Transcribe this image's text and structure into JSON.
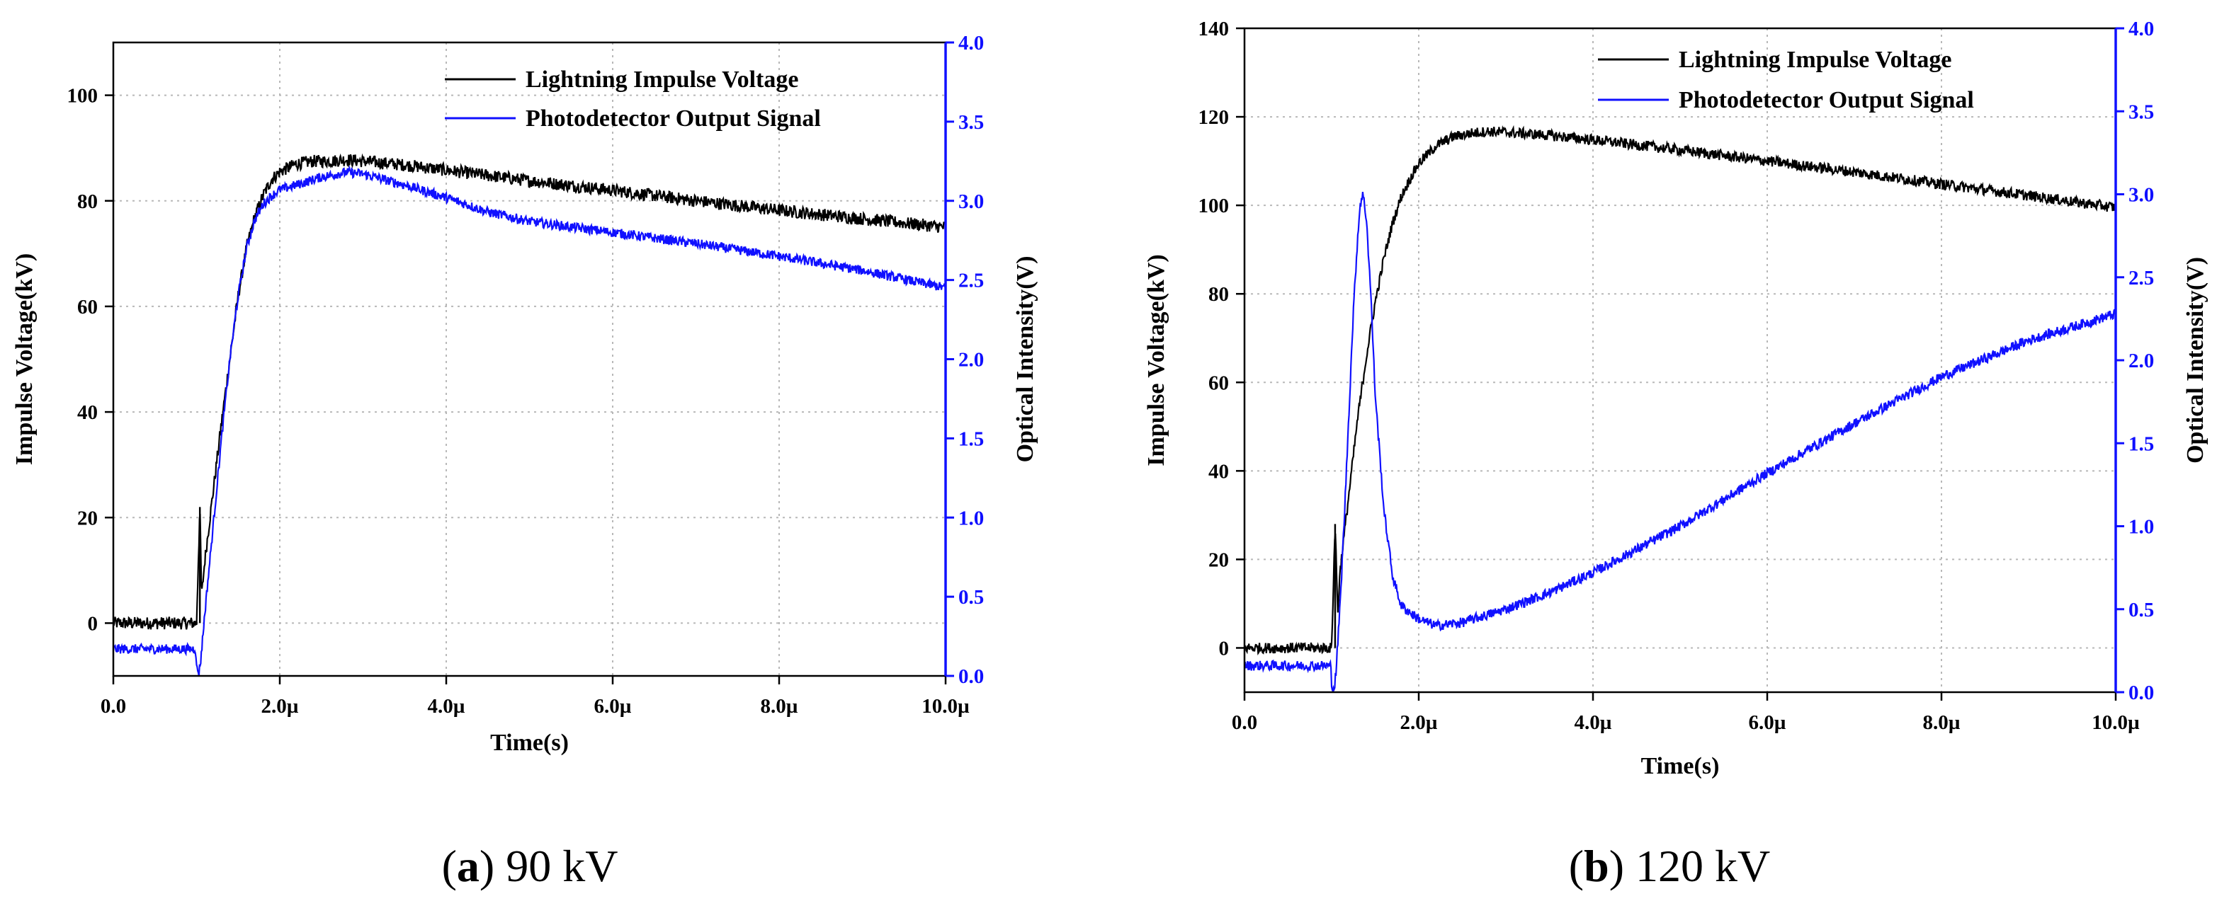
{
  "chart_data": [
    {
      "type": "line",
      "panel_label": "a",
      "caption": "90 kV",
      "xlabel": "Time(s)",
      "ylabel_left": "Impulse Voltage(kV)",
      "ylabel_right": "Optical Intensity(V)",
      "xlim": [
        0,
        10
      ],
      "x_unit_label": "µ",
      "ylim_left": [
        -10,
        110
      ],
      "ylim_right": [
        0,
        4.0
      ],
      "x_ticks": [
        "0.0",
        "2.0µ",
        "4.0µ",
        "6.0µ",
        "8.0µ",
        "10.0µ"
      ],
      "x_tick_values": [
        0,
        2,
        4,
        6,
        8,
        10
      ],
      "y_left_ticks": [
        "0",
        "20",
        "40",
        "60",
        "80",
        "100"
      ],
      "y_left_tick_values": [
        0,
        20,
        40,
        60,
        80,
        100
      ],
      "y_right_ticks": [
        "0.0",
        "0.5",
        "1.0",
        "1.5",
        "2.0",
        "2.5",
        "3.0",
        "3.5",
        "4.0"
      ],
      "y_right_tick_values": [
        0,
        0.5,
        1.0,
        1.5,
        2.0,
        2.5,
        3.0,
        3.5,
        4.0
      ],
      "grid": true,
      "legend_position": "top-right",
      "series": [
        {
          "name": "Lightning Impulse Voltage",
          "color": "#000000",
          "axis": "left",
          "x": [
            0,
            0.5,
            1.0,
            1.04,
            1.06,
            1.1,
            1.2,
            1.3,
            1.4,
            1.5,
            1.6,
            1.7,
            1.8,
            1.9,
            2.0,
            2.2,
            2.4,
            2.6,
            2.8,
            3.0,
            3.5,
            4.0,
            5.0,
            6.0,
            7.0,
            8.0,
            9.0,
            10.0
          ],
          "y": [
            0,
            0,
            0,
            22,
            5,
            12,
            25,
            38,
            50,
            62,
            71,
            77,
            81,
            84,
            85.5,
            87,
            87.5,
            87.5,
            87.8,
            87.5,
            86.8,
            85.8,
            83.8,
            82,
            80,
            78.2,
            76.6,
            75
          ],
          "noise": 1.2,
          "spikes": [
            {
              "x": 1.04,
              "y": 22
            }
          ]
        },
        {
          "name": "Photodetector Output Signal",
          "color": "#1010ff",
          "axis": "right",
          "x": [
            0,
            0.5,
            0.99,
            1.0,
            1.03,
            1.05,
            1.1,
            1.2,
            1.3,
            1.4,
            1.5,
            1.6,
            1.7,
            1.8,
            1.9,
            2.0,
            2.2,
            2.5,
            2.8,
            3.0,
            3.5,
            4.0,
            4.5,
            5.0,
            6.0,
            7.0,
            8.0,
            9.0,
            10.0
          ],
          "y": [
            0.17,
            0.17,
            0.17,
            0.05,
            0.02,
            0.1,
            0.4,
            0.95,
            1.5,
            2.0,
            2.4,
            2.7,
            2.88,
            2.98,
            3.03,
            3.07,
            3.1,
            3.15,
            3.18,
            3.17,
            3.1,
            3.02,
            2.93,
            2.87,
            2.8,
            2.73,
            2.65,
            2.56,
            2.45
          ],
          "noise": 0.03
        }
      ]
    },
    {
      "type": "line",
      "panel_label": "b",
      "caption": "120 kV",
      "xlabel": "Time(s)",
      "ylabel_left": "Impulse Voltage(kV)",
      "ylabel_right": "Optical Intensity(V)",
      "xlim": [
        0,
        10
      ],
      "x_unit_label": "µ",
      "ylim_left": [
        -10,
        140
      ],
      "ylim_right": [
        0,
        4.0
      ],
      "x_ticks": [
        "0.0",
        "2.0µ",
        "4.0µ",
        "6.0µ",
        "8.0µ",
        "10.0µ"
      ],
      "x_tick_values": [
        0,
        2,
        4,
        6,
        8,
        10
      ],
      "y_left_ticks": [
        "0",
        "20",
        "40",
        "60",
        "80",
        "100",
        "120",
        "140"
      ],
      "y_left_tick_values": [
        0,
        20,
        40,
        60,
        80,
        100,
        120,
        140
      ],
      "y_right_ticks": [
        "0.0",
        "0.5",
        "1.0",
        "1.5",
        "2.0",
        "2.5",
        "3.0",
        "3.5",
        "4.0"
      ],
      "y_right_tick_values": [
        0,
        0.5,
        1.0,
        1.5,
        2.0,
        2.5,
        3.0,
        3.5,
        4.0
      ],
      "grid": true,
      "legend_position": "top-right",
      "series": [
        {
          "name": "Lightning Impulse Voltage",
          "color": "#000000",
          "axis": "left",
          "x": [
            0,
            0.5,
            1.0,
            1.04,
            1.07,
            1.1,
            1.2,
            1.3,
            1.4,
            1.5,
            1.6,
            1.7,
            1.8,
            1.9,
            2.0,
            2.2,
            2.4,
            2.6,
            2.8,
            3.0,
            3.5,
            4.0,
            5.0,
            6.0,
            7.0,
            8.0,
            9.0,
            10.0
          ],
          "y": [
            0,
            0,
            0,
            28,
            8,
            18,
            35,
            52,
            66,
            78,
            88,
            96,
            102,
            106,
            109.5,
            113.5,
            115.5,
            116.3,
            116.7,
            116.5,
            115.8,
            114.8,
            112.5,
            110,
            107.5,
            104.8,
            102.2,
            99.5
          ],
          "noise": 1.2,
          "spikes": [
            {
              "x": 1.04,
              "y": 28
            }
          ]
        },
        {
          "name": "Photodetector Output Signal",
          "color": "#1010ff",
          "axis": "right",
          "x": [
            0,
            0.5,
            0.99,
            1.0,
            1.03,
            1.05,
            1.1,
            1.15,
            1.2,
            1.25,
            1.3,
            1.33,
            1.36,
            1.4,
            1.45,
            1.5,
            1.6,
            1.7,
            1.8,
            2.0,
            2.2,
            2.5,
            3.0,
            3.5,
            4.0,
            5.0,
            6.0,
            7.0,
            8.0,
            9.0,
            10.0
          ],
          "y": [
            0.16,
            0.16,
            0.16,
            0.05,
            0.02,
            0.12,
            0.55,
            1.1,
            1.7,
            2.3,
            2.75,
            2.95,
            3.0,
            2.85,
            2.4,
            1.8,
            1.1,
            0.7,
            0.52,
            0.44,
            0.4,
            0.42,
            0.5,
            0.6,
            0.72,
            1.0,
            1.32,
            1.62,
            1.9,
            2.12,
            2.28
          ],
          "noise": 0.03
        }
      ]
    }
  ]
}
